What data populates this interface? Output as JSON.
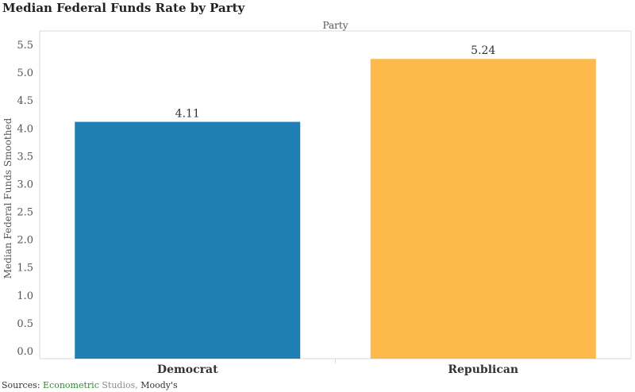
{
  "title": "Median Federal Funds Rate by Party",
  "chart_data": {
    "type": "bar",
    "title": "Median Federal Funds Rate by Party",
    "column_header": "Party",
    "xlabel": "",
    "ylabel": "Median Federal Funds Smoothed",
    "categories": [
      "Democrat",
      "Republican"
    ],
    "values": [
      4.11,
      5.24
    ],
    "data_labels": [
      "4.11",
      "5.24"
    ],
    "colors": [
      "#1f7fb4",
      "#fdb94b"
    ],
    "ylim": [
      0,
      5.5
    ],
    "yticks": [
      "0.0",
      "0.5",
      "1.0",
      "1.5",
      "2.0",
      "2.5",
      "3.0",
      "3.5",
      "4.0",
      "4.5",
      "5.0",
      "5.5"
    ],
    "grid": false,
    "legend": "none"
  },
  "sources": {
    "prefix": "Sources:",
    "part1": "Econometric",
    "part2": "Studios,",
    "part3": "Moody's"
  }
}
